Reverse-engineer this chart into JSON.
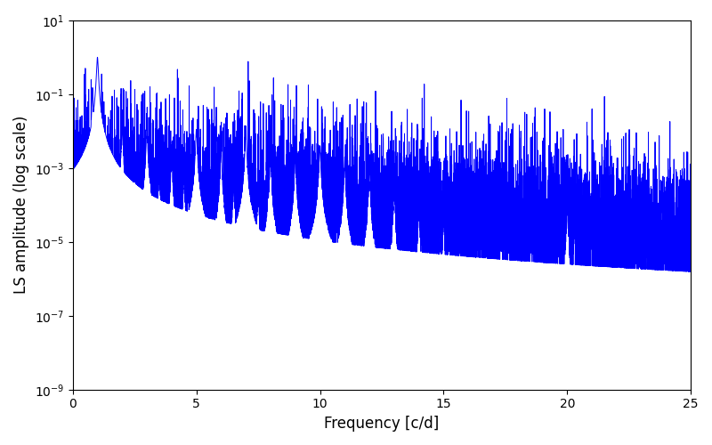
{
  "xlabel": "Frequency [c/d]",
  "ylabel": "LS amplitude (log scale)",
  "xlim": [
    0,
    25
  ],
  "ylim": [
    1e-09,
    10
  ],
  "line_color": "blue",
  "line_width": 0.7,
  "background_color": "#ffffff",
  "figsize": [
    8.0,
    5.0
  ],
  "dpi": 100,
  "freq_max": 25.0,
  "n_points": 8000,
  "seed": 137,
  "xlabel_fontsize": 12,
  "ylabel_fontsize": 12
}
